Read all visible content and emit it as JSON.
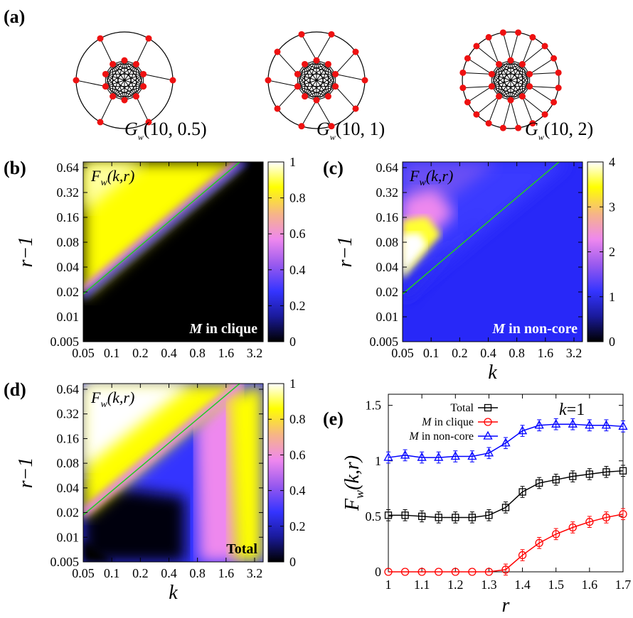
{
  "panel_labels": {
    "a": "(a)",
    "b": "(b)",
    "c": "(c)",
    "d": "(d)",
    "e": "(e)"
  },
  "graphs": [
    {
      "name": "G",
      "sub": "w",
      "args": "(10, 0.5)",
      "leaves": 10,
      "outer_nodes": 6
    },
    {
      "name": "G",
      "sub": "w",
      "args": "(10, 1)",
      "leaves": 10,
      "outer_nodes": 10
    },
    {
      "name": "G",
      "sub": "w",
      "args": "(10, 2)",
      "leaves": 10,
      "outer_nodes": 20
    }
  ],
  "heatmap_common": {
    "y_ticks": [
      "0.64",
      "0.32",
      "0.16",
      "0.08",
      "0.04",
      "0.02",
      "0.01",
      "0.005"
    ],
    "x_ticks": [
      "0.05",
      "0.1",
      "0.2",
      "0.4",
      "0.8",
      "1.6",
      "3.2"
    ],
    "ylabel": "r−1",
    "xlabel": "k",
    "func_label": {
      "F": "F",
      "sub": "w",
      "args": "(k,r)"
    },
    "line_color": "#22cc22"
  },
  "heatmaps": [
    {
      "id": "b",
      "inlabel_italic": "M",
      "inlabel_rest": " in clique",
      "colorbar_ticks": [
        "1",
        "0.8",
        "0.6",
        "0.4",
        "0.2",
        "0"
      ],
      "colorbar_max": 1
    },
    {
      "id": "c",
      "inlabel_italic": "M",
      "inlabel_rest": " in non-core",
      "colorbar_ticks": [
        "4",
        "3",
        "2",
        "1",
        "0"
      ],
      "colorbar_max": 4
    },
    {
      "id": "d",
      "inlabel_italic": "",
      "inlabel_rest": "Total",
      "colorbar_ticks": [
        "1",
        "0.8",
        "0.6",
        "0.4",
        "0.2",
        "0"
      ],
      "colorbar_max": 1
    }
  ],
  "colormap": [
    "#000000",
    "#1a1a9a",
    "#3434ff",
    "#9a5aee",
    "#ee88ee",
    "#f6b488",
    "#ffff00",
    "#ffffff"
  ],
  "chart_data": {
    "type": "line",
    "annotation": "k=1",
    "x": [
      1.0,
      1.05,
      1.1,
      1.15,
      1.2,
      1.25,
      1.3,
      1.35,
      1.4,
      1.45,
      1.5,
      1.55,
      1.6,
      1.65,
      1.7
    ],
    "series": [
      {
        "name": "Total",
        "color": "#000000",
        "marker": "square",
        "values": [
          0.51,
          0.51,
          0.5,
          0.49,
          0.49,
          0.49,
          0.51,
          0.58,
          0.72,
          0.8,
          0.83,
          0.86,
          0.88,
          0.9,
          0.91
        ]
      },
      {
        "name": "M in clique",
        "color": "#ff0000",
        "marker": "circle",
        "values": [
          0.0,
          0.0,
          0.0,
          0.0,
          0.0,
          0.0,
          0.0,
          0.02,
          0.15,
          0.26,
          0.34,
          0.4,
          0.45,
          0.49,
          0.52
        ]
      },
      {
        "name": "M in non-core",
        "color": "#0000ff",
        "marker": "triangle",
        "values": [
          1.03,
          1.05,
          1.03,
          1.03,
          1.04,
          1.04,
          1.07,
          1.16,
          1.27,
          1.32,
          1.33,
          1.33,
          1.32,
          1.32,
          1.31
        ]
      }
    ],
    "xticks": [
      "1",
      "1.1",
      "1.2",
      "1.3",
      "1.4",
      "1.5",
      "1.6",
      "1.7"
    ],
    "yticks": [
      "0",
      "0.5",
      "1",
      "1.5"
    ],
    "xlim": [
      1.0,
      1.7
    ],
    "ylim": [
      0,
      1.6
    ],
    "xlabel": "r",
    "ylabel": {
      "F": "F",
      "sub": "w",
      "args": "(k,r)"
    },
    "legend_position": "top-left"
  }
}
